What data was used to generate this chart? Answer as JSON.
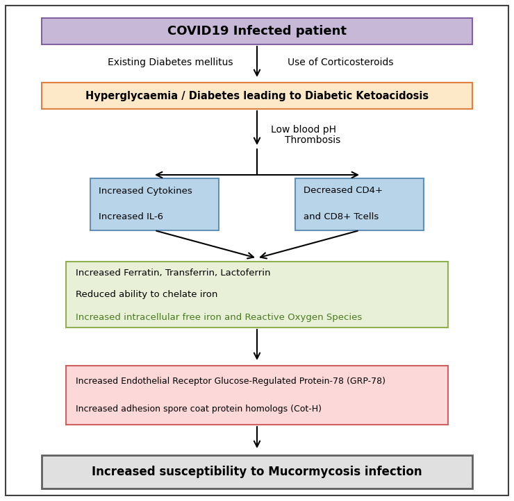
{
  "box1_text": "COVID19 Infected patient",
  "box1_color": "#c8b8d8",
  "box1_edge": "#8060a0",
  "box2_text": "Hyperglycaemia / Diabetes leading to Diabetic Ketoacidosis",
  "box2_color": "#fde8c8",
  "box2_edge": "#e08040",
  "box3l_line1": "Increased Cytokines",
  "box3l_line2": "Increased IL-6",
  "box3r_line1": "Decreased CD4+",
  "box3r_line2": "and CD8+ Tcells",
  "box3_color": "#b8d4e8",
  "box3_edge": "#6090b8",
  "box4_line1": "Increased Ferratin, Transferrin, Lactoferrin",
  "box4_line2": "Reduced ability to chelate iron",
  "box4_line3": "Increased intracellular free iron and Reactive Oxygen Species",
  "box4_color": "#e8f0d8",
  "box4_edge": "#90b050",
  "box4_line3_color": "#4a7a20",
  "box5_line1": "Increased Endothelial Receptor Glucose-Regulated Protein-78 (GRP-78)",
  "box5_line2": "Increased adhesion spore coat protein homologs (Cot-H)",
  "box5_color": "#fcd8d8",
  "box5_edge": "#d06060",
  "box6_text": "Increased susceptibility to Mucormycosis infection",
  "box6_color": "#e0e0e0",
  "box6_edge": "#606060",
  "label_left": "Existing Diabetes mellitus",
  "label_right": "Use of Corticosteroids",
  "label_lowph": "Low blood pH",
  "label_thrombosis": "Thrombosis",
  "fig_bg": "#ffffff",
  "border_color": "#404040"
}
